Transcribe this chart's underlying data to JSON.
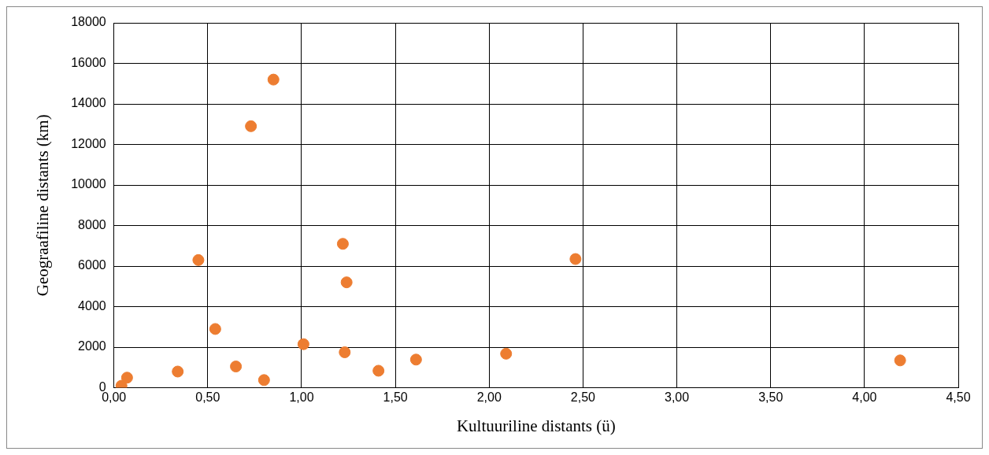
{
  "chart_data": {
    "type": "scatter",
    "xlabel": "Kultuuriline distants (ü)",
    "ylabel": "Geograafiline distants (km)",
    "x": [
      0.04,
      0.07,
      0.34,
      0.45,
      0.54,
      0.65,
      0.73,
      0.8,
      0.85,
      1.01,
      1.22,
      1.24,
      1.23,
      1.41,
      1.61,
      2.09,
      2.46,
      4.19
    ],
    "series": [
      {
        "color": "#ed7d31",
        "values": [
          100,
          500,
          800,
          6300,
          2900,
          1050,
          12900,
          380,
          15200,
          2150,
          7100,
          5200,
          1750,
          840,
          1390,
          1680,
          6350,
          1350
        ]
      }
    ],
    "xlim": [
      0,
      4.5
    ],
    "xticks": [
      {
        "value": 0,
        "label": "0,00"
      },
      {
        "value": 0.5,
        "label": "0,50"
      },
      {
        "value": 1,
        "label": "1,00"
      },
      {
        "value": 1.5,
        "label": "1,50"
      },
      {
        "value": 2,
        "label": "2,00"
      },
      {
        "value": 2.5,
        "label": "2,50"
      },
      {
        "value": 3,
        "label": "3,00"
      },
      {
        "value": 3.5,
        "label": "3,50"
      },
      {
        "value": 4,
        "label": "4,00"
      },
      {
        "value": 4.5,
        "label": "4,50"
      }
    ],
    "ylim": [
      0,
      18000
    ],
    "yticks": [
      0,
      2000,
      4000,
      6000,
      8000,
      10000,
      12000,
      14000,
      16000,
      18000
    ],
    "grid": true,
    "legend": false,
    "marker": "circle"
  }
}
